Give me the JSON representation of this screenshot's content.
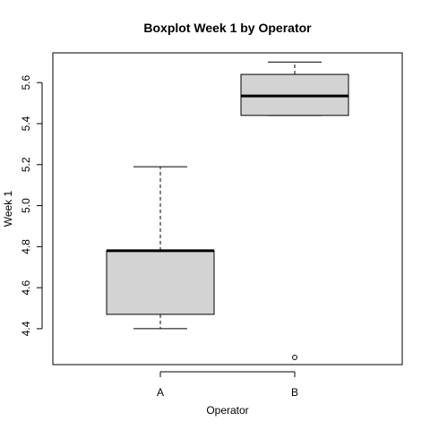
{
  "chart_data": {
    "type": "boxplot",
    "title": "Boxplot Week 1 by Operator",
    "xlabel": "Operator",
    "ylabel": "Week 1",
    "categories": [
      "A",
      "B"
    ],
    "yticks": [
      "4.4",
      "4.6",
      "4.8",
      "5.0",
      "5.2",
      "5.4",
      "5.6"
    ],
    "ylim": [
      4.225,
      5.745
    ],
    "grid": false,
    "box_fill": "#d3d3d3",
    "boxes": [
      {
        "category": "A",
        "whisker_low": 4.4,
        "q1": 4.47,
        "median": 4.78,
        "q3": 4.78,
        "whisker_high": 5.19,
        "outliers": []
      },
      {
        "category": "B",
        "whisker_low": 5.44,
        "q1": 5.44,
        "median": 5.535,
        "q3": 5.64,
        "whisker_high": 5.7,
        "outliers": [
          4.26
        ]
      }
    ]
  }
}
